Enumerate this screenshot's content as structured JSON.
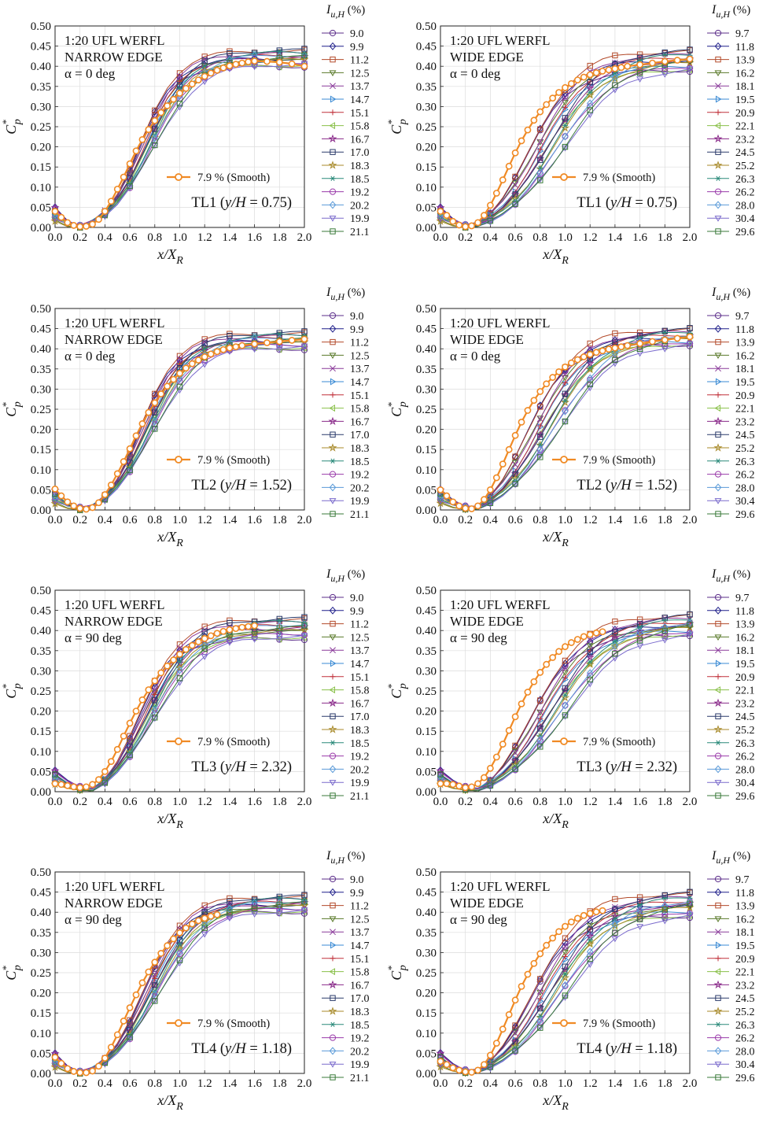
{
  "figure": {
    "legend_title": "I",
    "legend_title_sub": "u,H",
    "legend_title_suffix": " (%)",
    "smooth_label": "7.9 % (Smooth)",
    "ylabel": "C",
    "ylabel_sup": "*",
    "ylabel_sub": "p",
    "xlabel": "x/X",
    "xlabel_sub": "R",
    "colors": [
      "#5b2d8a",
      "#1f1f8a",
      "#b34a2a",
      "#5a7a2a",
      "#8a3a9a",
      "#3a8ad4",
      "#c0303a",
      "#8ac04a",
      "#8a2a8a",
      "#2a3a6a",
      "#a88a2a",
      "#2a8a7a",
      "#9a3aaa",
      "#5a9ad8",
      "#7a6acc",
      "#3a7a3a"
    ],
    "markers": [
      "circle",
      "diamond",
      "square",
      "tri-down",
      "x",
      "tri-right",
      "plus",
      "tri-left",
      "star",
      "square",
      "star",
      "asterisk",
      "circle",
      "diamond",
      "tri-down",
      "square"
    ],
    "smooth_color": "#f08a24"
  },
  "chart_data": [
    {
      "id": "TL1-narrow",
      "type": "line",
      "annotation": [
        "1:20 UFL WERFL",
        "NARROW EDGE",
        "α = 0 deg"
      ],
      "location": "TL1 (y/H = 0.75)",
      "legend": [
        "9.0",
        "9.9",
        "11.2",
        "12.5",
        "13.7",
        "14.7",
        "15.1",
        "15.8",
        "16.7",
        "17.0",
        "18.3",
        "18.5",
        "19.2",
        "20.2",
        "19.9",
        "21.1"
      ],
      "smooth": {
        "name": "7.9 % (Smooth)",
        "x": [
          0.0,
          0.05,
          0.1,
          0.15,
          0.2,
          0.25,
          0.3,
          0.35,
          0.4,
          0.45,
          0.5,
          0.55,
          0.6,
          0.65,
          0.7,
          0.75,
          0.8,
          0.85,
          0.9,
          0.95,
          1.0,
          1.05,
          1.1,
          1.15,
          1.2,
          1.25,
          1.3,
          1.35,
          1.4,
          1.45,
          1.5,
          1.55,
          1.6,
          1.7,
          1.8,
          1.9,
          2.0
        ],
        "y": [
          0.04,
          0.025,
          0.012,
          0.005,
          0.002,
          0.003,
          0.008,
          0.02,
          0.04,
          0.065,
          0.095,
          0.125,
          0.158,
          0.19,
          0.218,
          0.243,
          0.265,
          0.285,
          0.302,
          0.318,
          0.333,
          0.345,
          0.356,
          0.366,
          0.375,
          0.383,
          0.39,
          0.396,
          0.401,
          0.405,
          0.408,
          0.411,
          0.413,
          0.412,
          0.41,
          0.406,
          0.4
        ]
      },
      "ylim": [
        0,
        0.5
      ],
      "xlim": [
        0,
        2.0
      ],
      "xticks": [
        "0.0",
        "0.2",
        "0.4",
        "0.6",
        "0.8",
        "1.0",
        "1.2",
        "1.4",
        "1.6",
        "1.8",
        "2.0"
      ],
      "yticks": [
        "0.00",
        "0.05",
        "0.10",
        "0.15",
        "0.20",
        "0.25",
        "0.30",
        "0.35",
        "0.40",
        "0.45",
        "0.50"
      ],
      "curve": {
        "cmin": 0.002,
        "x0": 0.2,
        "x_mid": 0.72,
        "slope": 7.0,
        "plateau": 0.405,
        "end_min": 0.4,
        "end_max": 0.44,
        "spread": 0.12
      }
    },
    {
      "id": "TL1-wide",
      "type": "line",
      "annotation": [
        "1:20 UFL WERFL",
        "WIDE EDGE",
        "α = 0 deg"
      ],
      "location": "TL1 (y/H = 0.75)",
      "legend": [
        "9.7",
        "11.8",
        "13.9",
        "16.2",
        "18.1",
        "19.5",
        "20.9",
        "22.1",
        "23.2",
        "24.5",
        "25.2",
        "26.3",
        "26.2",
        "28.0",
        "30.4",
        "29.6"
      ],
      "smooth": {
        "name": "7.9 % (Smooth)",
        "x": [
          0.0,
          0.05,
          0.1,
          0.15,
          0.2,
          0.25,
          0.3,
          0.35,
          0.4,
          0.45,
          0.5,
          0.55,
          0.6,
          0.65,
          0.7,
          0.75,
          0.8,
          0.85,
          0.9,
          0.95,
          1.0,
          1.05,
          1.1,
          1.15,
          1.2,
          1.25,
          1.3,
          1.35,
          1.4,
          1.45,
          1.5,
          1.6,
          1.7,
          1.8,
          1.9,
          2.0
        ],
        "y": [
          0.04,
          0.03,
          0.015,
          0.006,
          0.002,
          0.004,
          0.012,
          0.03,
          0.055,
          0.085,
          0.118,
          0.152,
          0.185,
          0.215,
          0.242,
          0.266,
          0.287,
          0.305,
          0.321,
          0.335,
          0.347,
          0.357,
          0.366,
          0.373,
          0.379,
          0.384,
          0.388,
          0.391,
          0.394,
          0.397,
          0.4,
          0.404,
          0.408,
          0.412,
          0.415,
          0.418
        ]
      },
      "ylim": [
        0,
        0.5
      ],
      "xlim": [
        0,
        2.0
      ],
      "xticks": [
        "0.0",
        "0.2",
        "0.4",
        "0.6",
        "0.8",
        "1.0",
        "1.2",
        "1.4",
        "1.6",
        "1.8",
        "2.0"
      ],
      "yticks": [
        "0.00",
        "0.05",
        "0.10",
        "0.15",
        "0.20",
        "0.25",
        "0.30",
        "0.35",
        "0.40",
        "0.45",
        "0.50"
      ],
      "curve": {
        "cmin": 0.002,
        "x0": 0.25,
        "x_mid": 0.8,
        "slope": 5.5,
        "plateau": 0.41,
        "end_min": 0.39,
        "end_max": 0.44,
        "spread": 0.3
      }
    },
    {
      "id": "TL2-narrow",
      "type": "line",
      "annotation": [
        "1:20 UFL WERFL",
        "NARROW EDGE",
        "α = 0 deg"
      ],
      "location": "TL2 (y/H = 1.52)",
      "legend": [
        "9.0",
        "9.9",
        "11.2",
        "12.5",
        "13.7",
        "14.7",
        "15.1",
        "15.8",
        "16.7",
        "17.0",
        "18.3",
        "18.5",
        "19.2",
        "20.2",
        "19.9",
        "21.1"
      ],
      "smooth": {
        "name": "7.9 % (Smooth)",
        "x": [
          0.0,
          0.05,
          0.1,
          0.15,
          0.2,
          0.25,
          0.3,
          0.35,
          0.4,
          0.45,
          0.5,
          0.55,
          0.6,
          0.65,
          0.7,
          0.75,
          0.8,
          0.85,
          0.9,
          0.95,
          1.0,
          1.05,
          1.1,
          1.15,
          1.2,
          1.25,
          1.3,
          1.35,
          1.4,
          1.45,
          1.5,
          1.6,
          1.7,
          1.8,
          1.9,
          2.0
        ],
        "y": [
          0.052,
          0.035,
          0.02,
          0.01,
          0.004,
          0.002,
          0.006,
          0.018,
          0.038,
          0.062,
          0.09,
          0.12,
          0.152,
          0.184,
          0.214,
          0.242,
          0.266,
          0.288,
          0.307,
          0.324,
          0.339,
          0.352,
          0.363,
          0.372,
          0.38,
          0.387,
          0.393,
          0.398,
          0.402,
          0.405,
          0.408,
          0.412,
          0.415,
          0.418,
          0.421,
          0.424
        ]
      },
      "ylim": [
        0,
        0.5
      ],
      "xlim": [
        0,
        2.0
      ],
      "xticks": [
        "0.0",
        "0.2",
        "0.4",
        "0.6",
        "0.8",
        "1.0",
        "1.2",
        "1.4",
        "1.6",
        "1.8",
        "2.0"
      ],
      "yticks": [
        "0.00",
        "0.05",
        "0.10",
        "0.15",
        "0.20",
        "0.25",
        "0.30",
        "0.35",
        "0.40",
        "0.45",
        "0.50"
      ],
      "curve": {
        "cmin": 0.002,
        "x0": 0.25,
        "x_mid": 0.72,
        "slope": 7.0,
        "plateau": 0.415,
        "end_min": 0.4,
        "end_max": 0.44,
        "spread": 0.12
      }
    },
    {
      "id": "TL2-wide",
      "type": "line",
      "annotation": [
        "1:20 UFL WERFL",
        "WIDE EDGE",
        "α = 0 deg"
      ],
      "location": "TL2 (y/H = 1.52)",
      "legend": [
        "9.7",
        "11.8",
        "13.9",
        "16.2",
        "18.1",
        "19.5",
        "20.9",
        "22.1",
        "23.2",
        "24.5",
        "25.2",
        "26.3",
        "26.2",
        "28.0",
        "30.4",
        "29.6"
      ],
      "smooth": {
        "name": "7.9 % (Smooth)",
        "x": [
          0.0,
          0.05,
          0.1,
          0.15,
          0.2,
          0.25,
          0.3,
          0.35,
          0.4,
          0.45,
          0.5,
          0.55,
          0.6,
          0.65,
          0.7,
          0.75,
          0.8,
          0.85,
          0.9,
          0.95,
          1.0,
          1.05,
          1.1,
          1.15,
          1.2,
          1.25,
          1.3,
          1.35,
          1.4,
          1.45,
          1.5,
          1.6,
          1.7,
          1.8,
          1.9,
          2.0
        ],
        "y": [
          0.05,
          0.035,
          0.02,
          0.01,
          0.004,
          0.003,
          0.01,
          0.026,
          0.05,
          0.08,
          0.114,
          0.15,
          0.185,
          0.218,
          0.247,
          0.272,
          0.294,
          0.313,
          0.329,
          0.343,
          0.355,
          0.365,
          0.373,
          0.38,
          0.386,
          0.391,
          0.395,
          0.399,
          0.402,
          0.405,
          0.408,
          0.413,
          0.418,
          0.422,
          0.426,
          0.43
        ]
      },
      "ylim": [
        0,
        0.5
      ],
      "xlim": [
        0,
        2.0
      ],
      "xticks": [
        "0.0",
        "0.2",
        "0.4",
        "0.6",
        "0.8",
        "1.0",
        "1.2",
        "1.4",
        "1.6",
        "1.8",
        "2.0"
      ],
      "yticks": [
        "0.00",
        "0.05",
        "0.10",
        "0.15",
        "0.20",
        "0.25",
        "0.30",
        "0.35",
        "0.40",
        "0.45",
        "0.50"
      ],
      "curve": {
        "cmin": 0.003,
        "x0": 0.28,
        "x_mid": 0.78,
        "slope": 5.5,
        "plateau": 0.42,
        "end_min": 0.41,
        "end_max": 0.45,
        "spread": 0.28
      }
    },
    {
      "id": "TL3-narrow",
      "type": "line",
      "annotation": [
        "1:20 UFL WERFL",
        "NARROW EDGE",
        "α = 90 deg"
      ],
      "location": "TL3 (y/H = 2.32)",
      "legend": [
        "9.0",
        "9.9",
        "11.2",
        "12.5",
        "13.7",
        "14.7",
        "15.1",
        "15.8",
        "16.7",
        "17.0",
        "18.3",
        "18.5",
        "19.2",
        "20.2",
        "19.9",
        "21.1"
      ],
      "smooth": {
        "name": "7.9 % (Smooth)",
        "x": [
          0.0,
          0.05,
          0.1,
          0.15,
          0.2,
          0.25,
          0.3,
          0.35,
          0.4,
          0.45,
          0.5,
          0.55,
          0.6,
          0.65,
          0.7,
          0.75,
          0.8,
          0.85,
          0.9,
          0.95,
          1.0,
          1.05,
          1.1,
          1.15,
          1.2,
          1.25,
          1.3,
          1.35,
          1.4,
          1.45,
          1.5,
          1.55,
          1.6
        ],
        "y": [
          0.02,
          0.018,
          0.015,
          0.012,
          0.01,
          0.012,
          0.018,
          0.03,
          0.05,
          0.075,
          0.105,
          0.138,
          0.17,
          0.2,
          0.228,
          0.253,
          0.275,
          0.295,
          0.312,
          0.327,
          0.341,
          0.353,
          0.363,
          0.372,
          0.38,
          0.387,
          0.393,
          0.398,
          0.402,
          0.405,
          0.408,
          0.41,
          0.412
        ]
      },
      "ylim": [
        0,
        0.5
      ],
      "xlim": [
        0,
        2.0
      ],
      "xticks": [
        "0.0",
        "0.2",
        "0.4",
        "0.6",
        "0.8",
        "1.0",
        "1.2",
        "1.4",
        "1.6",
        "1.8",
        "2.0"
      ],
      "yticks": [
        "0.00",
        "0.05",
        "0.10",
        "0.15",
        "0.20",
        "0.25",
        "0.30",
        "0.35",
        "0.40",
        "0.45",
        "0.50"
      ],
      "curve": {
        "cmin": 0.005,
        "x0": 0.3,
        "x_mid": 0.72,
        "slope": 6.5,
        "plateau": 0.415,
        "end_min": 0.38,
        "end_max": 0.43,
        "spread": 0.14
      }
    },
    {
      "id": "TL3-wide",
      "type": "line",
      "annotation": [
        "1:20 UFL WERFL",
        "WIDE EDGE",
        "α = 90 deg"
      ],
      "location": "TL3 (y/H = 2.32)",
      "legend": [
        "9.7",
        "11.8",
        "13.9",
        "16.2",
        "18.1",
        "19.5",
        "20.9",
        "22.1",
        "23.2",
        "24.5",
        "25.2",
        "26.3",
        "26.2",
        "28.0",
        "30.4",
        "29.6"
      ],
      "smooth": {
        "name": "7.9 % (Smooth)",
        "x": [
          0.0,
          0.05,
          0.1,
          0.15,
          0.2,
          0.25,
          0.3,
          0.35,
          0.4,
          0.45,
          0.5,
          0.55,
          0.6,
          0.65,
          0.7,
          0.75,
          0.8,
          0.85,
          0.9,
          0.95,
          1.0,
          1.05,
          1.1,
          1.15,
          1.2,
          1.25,
          1.3
        ],
        "y": [
          0.02,
          0.02,
          0.018,
          0.014,
          0.01,
          0.012,
          0.02,
          0.035,
          0.058,
          0.086,
          0.118,
          0.152,
          0.186,
          0.218,
          0.247,
          0.273,
          0.296,
          0.316,
          0.333,
          0.348,
          0.36,
          0.37,
          0.378,
          0.385,
          0.39,
          0.394,
          0.397
        ]
      },
      "ylim": [
        0,
        0.5
      ],
      "xlim": [
        0,
        2.0
      ],
      "xticks": [
        "0.0",
        "0.2",
        "0.4",
        "0.6",
        "0.8",
        "1.0",
        "1.2",
        "1.4",
        "1.6",
        "1.8",
        "2.0"
      ],
      "yticks": [
        "0.00",
        "0.05",
        "0.10",
        "0.15",
        "0.20",
        "0.25",
        "0.30",
        "0.35",
        "0.40",
        "0.45",
        "0.50"
      ],
      "curve": {
        "cmin": 0.005,
        "x0": 0.3,
        "x_mid": 0.82,
        "slope": 5.2,
        "plateau": 0.42,
        "end_min": 0.39,
        "end_max": 0.44,
        "spread": 0.3
      }
    },
    {
      "id": "TL4-narrow",
      "type": "line",
      "annotation": [
        "1:20 UFL WERFL",
        "NARROW EDGE",
        "α = 90 deg"
      ],
      "location": "TL4 (y/H = 1.18)",
      "legend": [
        "9.0",
        "9.9",
        "11.2",
        "12.5",
        "13.7",
        "14.7",
        "15.1",
        "15.8",
        "16.7",
        "17.0",
        "18.3",
        "18.5",
        "19.2",
        "20.2",
        "19.9",
        "21.1"
      ],
      "smooth": {
        "name": "7.9 % (Smooth)",
        "x": [
          0.0,
          0.05,
          0.1,
          0.15,
          0.2,
          0.25,
          0.3,
          0.35,
          0.4,
          0.45,
          0.5,
          0.55,
          0.6,
          0.65,
          0.7,
          0.75,
          0.8,
          0.85,
          0.9,
          0.95,
          1.0,
          1.05,
          1.1,
          1.15,
          1.2,
          1.25,
          1.3
        ],
        "y": [
          0.04,
          0.025,
          0.012,
          0.005,
          0.002,
          0.002,
          0.006,
          0.018,
          0.038,
          0.065,
          0.096,
          0.13,
          0.163,
          0.195,
          0.225,
          0.252,
          0.276,
          0.298,
          0.317,
          0.334,
          0.349,
          0.361,
          0.371,
          0.379,
          0.385,
          0.39,
          0.394
        ]
      },
      "ylim": [
        0,
        0.5
      ],
      "xlim": [
        0,
        2.0
      ],
      "xticks": [
        "0.0",
        "0.2",
        "0.4",
        "0.6",
        "0.8",
        "1.0",
        "1.2",
        "1.4",
        "1.6",
        "1.8",
        "2.0"
      ],
      "yticks": [
        "0.00",
        "0.05",
        "0.10",
        "0.15",
        "0.20",
        "0.25",
        "0.30",
        "0.35",
        "0.40",
        "0.45",
        "0.50"
      ],
      "curve": {
        "cmin": 0.002,
        "x0": 0.22,
        "x_mid": 0.75,
        "slope": 6.5,
        "plateau": 0.415,
        "end_min": 0.4,
        "end_max": 0.44,
        "spread": 0.14
      }
    },
    {
      "id": "TL4-wide",
      "type": "line",
      "annotation": [
        "1:20 UFL WERFL",
        "WIDE EDGE",
        "α = 90 deg"
      ],
      "location": "TL4 (y/H = 1.18)",
      "legend": [
        "9.7",
        "11.8",
        "13.9",
        "16.2",
        "18.1",
        "19.5",
        "20.9",
        "22.1",
        "23.2",
        "24.5",
        "25.2",
        "26.3",
        "26.2",
        "28.0",
        "30.4",
        "29.6"
      ],
      "smooth": {
        "name": "7.9 % (Smooth)",
        "x": [
          0.0,
          0.05,
          0.1,
          0.15,
          0.2,
          0.25,
          0.3,
          0.35,
          0.4,
          0.45,
          0.5,
          0.55,
          0.6,
          0.65,
          0.7,
          0.75,
          0.8,
          0.85,
          0.9,
          0.95,
          1.0,
          1.05,
          1.1,
          1.15,
          1.2,
          1.25,
          1.3
        ],
        "y": [
          0.03,
          0.022,
          0.014,
          0.008,
          0.004,
          0.003,
          0.008,
          0.022,
          0.045,
          0.075,
          0.11,
          0.146,
          0.182,
          0.216,
          0.246,
          0.273,
          0.297,
          0.318,
          0.336,
          0.352,
          0.365,
          0.376,
          0.385,
          0.392,
          0.397,
          0.401,
          0.404
        ]
      },
      "ylim": [
        0,
        0.5
      ],
      "xlim": [
        0,
        2.0
      ],
      "xticks": [
        "0.0",
        "0.2",
        "0.4",
        "0.6",
        "0.8",
        "1.0",
        "1.2",
        "1.4",
        "1.6",
        "1.8",
        "2.0"
      ],
      "yticks": [
        "0.00",
        "0.05",
        "0.10",
        "0.15",
        "0.20",
        "0.25",
        "0.30",
        "0.35",
        "0.40",
        "0.45",
        "0.50"
      ],
      "curve": {
        "cmin": 0.003,
        "x0": 0.27,
        "x_mid": 0.82,
        "slope": 5.3,
        "plateau": 0.425,
        "end_min": 0.39,
        "end_max": 0.45,
        "spread": 0.3
      }
    }
  ]
}
